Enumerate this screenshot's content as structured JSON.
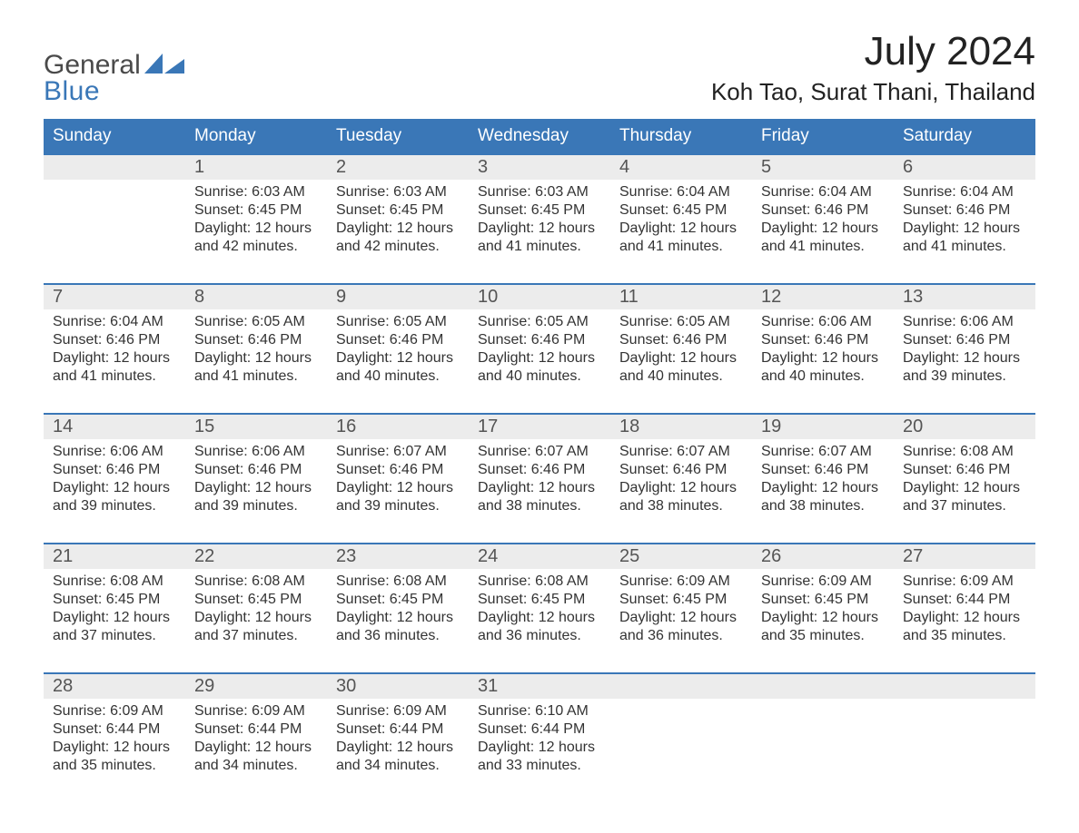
{
  "brand": {
    "word1": "General",
    "word2": "Blue",
    "text_color": "#4a4a4a",
    "accent_color": "#3a77b7",
    "flag_colors": [
      "#3a77b7",
      "#3a77b7"
    ]
  },
  "title": {
    "month_year": "July 2024",
    "location": "Koh Tao, Surat Thani, Thailand",
    "title_fontsize": 44,
    "location_fontsize": 26
  },
  "calendar": {
    "header_bg": "#3a77b7",
    "header_text_color": "#ffffff",
    "week_divider_color": "#3a77b7",
    "daynum_bg": "#ececec",
    "body_text_color": "#333333",
    "columns": [
      "Sunday",
      "Monday",
      "Tuesday",
      "Wednesday",
      "Thursday",
      "Friday",
      "Saturday"
    ],
    "weeks": [
      [
        {
          "num": "",
          "sunrise": "",
          "sunset": "",
          "daylight1": "",
          "daylight2": ""
        },
        {
          "num": "1",
          "sunrise": "Sunrise: 6:03 AM",
          "sunset": "Sunset: 6:45 PM",
          "daylight1": "Daylight: 12 hours",
          "daylight2": "and 42 minutes."
        },
        {
          "num": "2",
          "sunrise": "Sunrise: 6:03 AM",
          "sunset": "Sunset: 6:45 PM",
          "daylight1": "Daylight: 12 hours",
          "daylight2": "and 42 minutes."
        },
        {
          "num": "3",
          "sunrise": "Sunrise: 6:03 AM",
          "sunset": "Sunset: 6:45 PM",
          "daylight1": "Daylight: 12 hours",
          "daylight2": "and 41 minutes."
        },
        {
          "num": "4",
          "sunrise": "Sunrise: 6:04 AM",
          "sunset": "Sunset: 6:45 PM",
          "daylight1": "Daylight: 12 hours",
          "daylight2": "and 41 minutes."
        },
        {
          "num": "5",
          "sunrise": "Sunrise: 6:04 AM",
          "sunset": "Sunset: 6:46 PM",
          "daylight1": "Daylight: 12 hours",
          "daylight2": "and 41 minutes."
        },
        {
          "num": "6",
          "sunrise": "Sunrise: 6:04 AM",
          "sunset": "Sunset: 6:46 PM",
          "daylight1": "Daylight: 12 hours",
          "daylight2": "and 41 minutes."
        }
      ],
      [
        {
          "num": "7",
          "sunrise": "Sunrise: 6:04 AM",
          "sunset": "Sunset: 6:46 PM",
          "daylight1": "Daylight: 12 hours",
          "daylight2": "and 41 minutes."
        },
        {
          "num": "8",
          "sunrise": "Sunrise: 6:05 AM",
          "sunset": "Sunset: 6:46 PM",
          "daylight1": "Daylight: 12 hours",
          "daylight2": "and 41 minutes."
        },
        {
          "num": "9",
          "sunrise": "Sunrise: 6:05 AM",
          "sunset": "Sunset: 6:46 PM",
          "daylight1": "Daylight: 12 hours",
          "daylight2": "and 40 minutes."
        },
        {
          "num": "10",
          "sunrise": "Sunrise: 6:05 AM",
          "sunset": "Sunset: 6:46 PM",
          "daylight1": "Daylight: 12 hours",
          "daylight2": "and 40 minutes."
        },
        {
          "num": "11",
          "sunrise": "Sunrise: 6:05 AM",
          "sunset": "Sunset: 6:46 PM",
          "daylight1": "Daylight: 12 hours",
          "daylight2": "and 40 minutes."
        },
        {
          "num": "12",
          "sunrise": "Sunrise: 6:06 AM",
          "sunset": "Sunset: 6:46 PM",
          "daylight1": "Daylight: 12 hours",
          "daylight2": "and 40 minutes."
        },
        {
          "num": "13",
          "sunrise": "Sunrise: 6:06 AM",
          "sunset": "Sunset: 6:46 PM",
          "daylight1": "Daylight: 12 hours",
          "daylight2": "and 39 minutes."
        }
      ],
      [
        {
          "num": "14",
          "sunrise": "Sunrise: 6:06 AM",
          "sunset": "Sunset: 6:46 PM",
          "daylight1": "Daylight: 12 hours",
          "daylight2": "and 39 minutes."
        },
        {
          "num": "15",
          "sunrise": "Sunrise: 6:06 AM",
          "sunset": "Sunset: 6:46 PM",
          "daylight1": "Daylight: 12 hours",
          "daylight2": "and 39 minutes."
        },
        {
          "num": "16",
          "sunrise": "Sunrise: 6:07 AM",
          "sunset": "Sunset: 6:46 PM",
          "daylight1": "Daylight: 12 hours",
          "daylight2": "and 39 minutes."
        },
        {
          "num": "17",
          "sunrise": "Sunrise: 6:07 AM",
          "sunset": "Sunset: 6:46 PM",
          "daylight1": "Daylight: 12 hours",
          "daylight2": "and 38 minutes."
        },
        {
          "num": "18",
          "sunrise": "Sunrise: 6:07 AM",
          "sunset": "Sunset: 6:46 PM",
          "daylight1": "Daylight: 12 hours",
          "daylight2": "and 38 minutes."
        },
        {
          "num": "19",
          "sunrise": "Sunrise: 6:07 AM",
          "sunset": "Sunset: 6:46 PM",
          "daylight1": "Daylight: 12 hours",
          "daylight2": "and 38 minutes."
        },
        {
          "num": "20",
          "sunrise": "Sunrise: 6:08 AM",
          "sunset": "Sunset: 6:46 PM",
          "daylight1": "Daylight: 12 hours",
          "daylight2": "and 37 minutes."
        }
      ],
      [
        {
          "num": "21",
          "sunrise": "Sunrise: 6:08 AM",
          "sunset": "Sunset: 6:45 PM",
          "daylight1": "Daylight: 12 hours",
          "daylight2": "and 37 minutes."
        },
        {
          "num": "22",
          "sunrise": "Sunrise: 6:08 AM",
          "sunset": "Sunset: 6:45 PM",
          "daylight1": "Daylight: 12 hours",
          "daylight2": "and 37 minutes."
        },
        {
          "num": "23",
          "sunrise": "Sunrise: 6:08 AM",
          "sunset": "Sunset: 6:45 PM",
          "daylight1": "Daylight: 12 hours",
          "daylight2": "and 36 minutes."
        },
        {
          "num": "24",
          "sunrise": "Sunrise: 6:08 AM",
          "sunset": "Sunset: 6:45 PM",
          "daylight1": "Daylight: 12 hours",
          "daylight2": "and 36 minutes."
        },
        {
          "num": "25",
          "sunrise": "Sunrise: 6:09 AM",
          "sunset": "Sunset: 6:45 PM",
          "daylight1": "Daylight: 12 hours",
          "daylight2": "and 36 minutes."
        },
        {
          "num": "26",
          "sunrise": "Sunrise: 6:09 AM",
          "sunset": "Sunset: 6:45 PM",
          "daylight1": "Daylight: 12 hours",
          "daylight2": "and 35 minutes."
        },
        {
          "num": "27",
          "sunrise": "Sunrise: 6:09 AM",
          "sunset": "Sunset: 6:44 PM",
          "daylight1": "Daylight: 12 hours",
          "daylight2": "and 35 minutes."
        }
      ],
      [
        {
          "num": "28",
          "sunrise": "Sunrise: 6:09 AM",
          "sunset": "Sunset: 6:44 PM",
          "daylight1": "Daylight: 12 hours",
          "daylight2": "and 35 minutes."
        },
        {
          "num": "29",
          "sunrise": "Sunrise: 6:09 AM",
          "sunset": "Sunset: 6:44 PM",
          "daylight1": "Daylight: 12 hours",
          "daylight2": "and 34 minutes."
        },
        {
          "num": "30",
          "sunrise": "Sunrise: 6:09 AM",
          "sunset": "Sunset: 6:44 PM",
          "daylight1": "Daylight: 12 hours",
          "daylight2": "and 34 minutes."
        },
        {
          "num": "31",
          "sunrise": "Sunrise: 6:10 AM",
          "sunset": "Sunset: 6:44 PM",
          "daylight1": "Daylight: 12 hours",
          "daylight2": "and 33 minutes."
        },
        {
          "num": "",
          "sunrise": "",
          "sunset": "",
          "daylight1": "",
          "daylight2": ""
        },
        {
          "num": "",
          "sunrise": "",
          "sunset": "",
          "daylight1": "",
          "daylight2": ""
        },
        {
          "num": "",
          "sunrise": "",
          "sunset": "",
          "daylight1": "",
          "daylight2": ""
        }
      ]
    ]
  }
}
